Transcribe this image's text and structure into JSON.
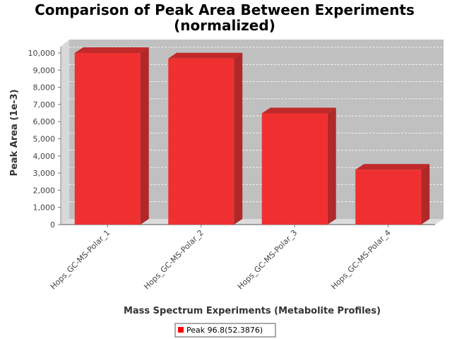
{
  "chart_data": {
    "type": "bar",
    "title": "Comparison of Peak Area Between Experiments",
    "subtitle": "(normalized)",
    "xlabel": "Mass Spectrum Experiments (Metabolite Profiles)",
    "ylabel": "Peak Area (1e-3)",
    "categories": [
      "Hops_GC-MS-Polar_1",
      "Hops_GC-MS-Polar_2",
      "Hops_GC-MS-Polar_3",
      "Hops_GC-MS-Polar_4"
    ],
    "series": [
      {
        "name": "Peak 96.8(52.3876)",
        "values": [
          10000,
          9680,
          6480,
          3200
        ],
        "color": "#f03030"
      }
    ],
    "ylim": [
      0,
      10000
    ],
    "yticks": [
      "0",
      "1,000",
      "2,000",
      "3,000",
      "4,000",
      "5,000",
      "6,000",
      "7,000",
      "8,000",
      "9,000",
      "10,000"
    ],
    "grid": true,
    "legend_position": "bottom",
    "plot_background": "#c0c0c0",
    "style": "3d"
  }
}
